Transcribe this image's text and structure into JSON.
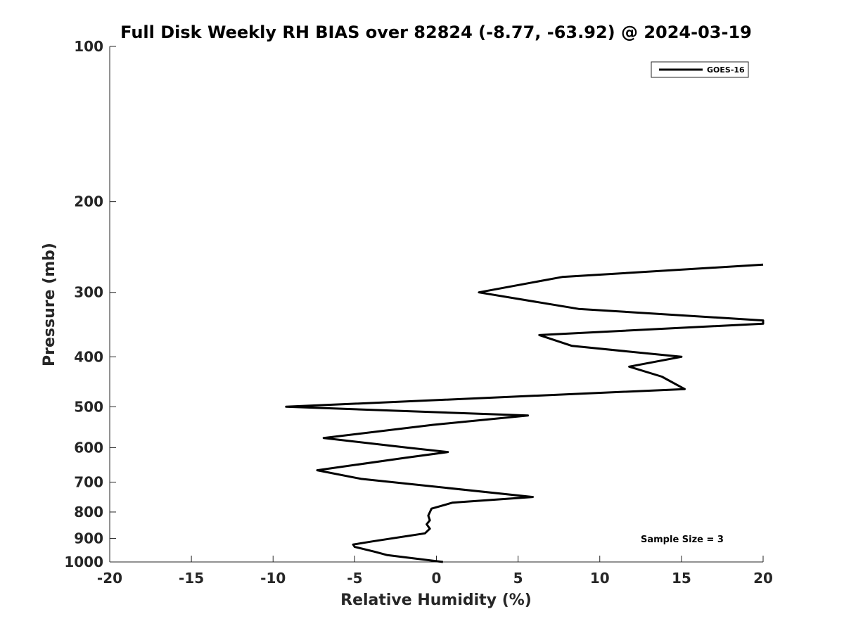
{
  "chart_data": {
    "type": "line",
    "title": "Full Disk Weekly RH BIAS over 82824 (-8.77, -63.92) @ 2024-03-19",
    "xlabel": "Relative Humidity (%)",
    "ylabel": "Pressure (mb)",
    "xlim": [
      -20,
      20
    ],
    "ylim": [
      100,
      1000
    ],
    "y_scale": "log",
    "y_inverted": true,
    "grid": false,
    "x_ticks": [
      -20,
      -15,
      -10,
      -5,
      0,
      5,
      10,
      15,
      20
    ],
    "x_tick_labels": [
      "-20",
      "-15",
      "-10",
      "-5",
      "0",
      "5",
      "10",
      "15",
      "20"
    ],
    "y_ticks": [
      100,
      200,
      300,
      400,
      500,
      600,
      700,
      800,
      900,
      1000
    ],
    "y_tick_labels": [
      "100",
      "200",
      "300",
      "400",
      "500",
      "600",
      "700",
      "800",
      "900",
      "1000"
    ],
    "legend_position": "top-right",
    "series": [
      {
        "name": "GOES-16",
        "color": "#000000",
        "x": [
          20,
          7.7,
          2.6,
          8.7,
          20,
          20,
          6.3,
          8.3,
          15.0,
          11.8,
          13.8,
          15.2,
          -9.2,
          5.6,
          -0.2,
          -6.9,
          -1.8,
          0.7,
          -1.9,
          -7.3,
          -4.6,
          5.9,
          1.0,
          -0.3,
          -0.5,
          -0.4,
          -0.6,
          -0.4,
          -0.7,
          -3.9,
          -5.1,
          -5.0,
          -3.8,
          -3.0,
          0.4
        ],
        "y": [
          265,
          280,
          300,
          323,
          340,
          345,
          363,
          381,
          400,
          418,
          437,
          462,
          500,
          520,
          542,
          575,
          600,
          612,
          628,
          664,
          690,
          748,
          767,
          788,
          813,
          830,
          845,
          862,
          880,
          912,
          925,
          935,
          955,
          970,
          1000
        ]
      }
    ],
    "annotations": [
      "Sample Size = 3"
    ]
  }
}
